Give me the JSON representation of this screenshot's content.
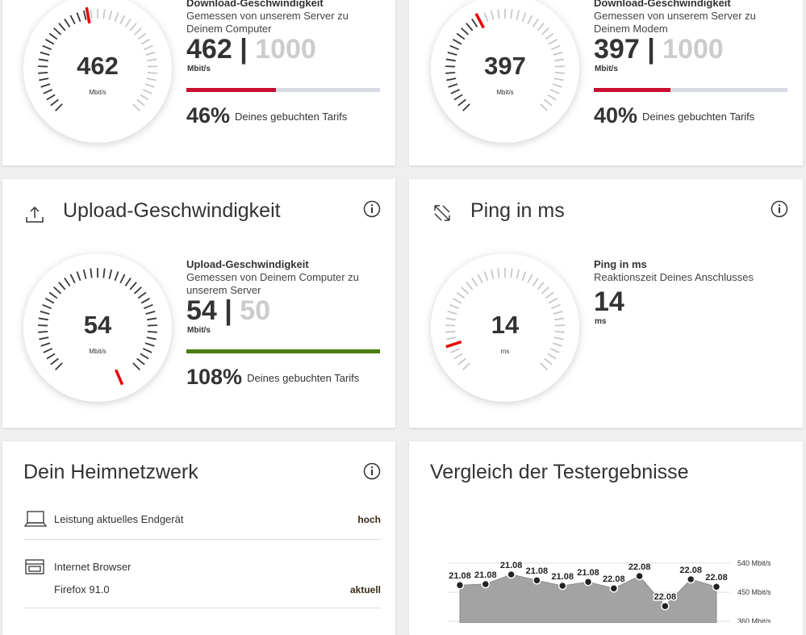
{
  "speed_cards": [
    {
      "title": "Download-Geschwindigkeit",
      "subtitle": "Gemessen von unserem Server zu Deinem Computer",
      "value": 462,
      "separator": "|",
      "max": 1000,
      "unit": "Mbit/s",
      "percent_label": "46%",
      "percent_text": "Deines gebuchten Tarifs"
    },
    {
      "title": "Download-Geschwindigkeit",
      "subtitle": "Gemessen von unserem Server zu Deinem Modem",
      "value": 397,
      "separator": "|",
      "max": 1000,
      "unit": "Mbit/s",
      "percent_label": "40%",
      "percent_text": "Deines gebuchten Tarifs"
    },
    {
      "heading": "Upload-Geschwindigkeit",
      "title": "Upload-Geschwindigkeit",
      "subtitle": "Gemessen von Deinem Computer zu unserem Server",
      "value": 54,
      "separator": "|",
      "max": 50,
      "unit": "Mbit/s",
      "percent_label": "108%",
      "percent_text": "Deines gebuchten Tarifs"
    }
  ],
  "ping_card": {
    "heading": "Ping in ms",
    "title": "Ping in ms",
    "subtitle": "Reaktionszeit Deines Anschlusses",
    "value": 14,
    "unit": "ms"
  },
  "home_network": {
    "heading": "Dein Heimnetzwerk",
    "rows": [
      {
        "label": "Leistung aktuelles Endgerät",
        "status": "hoch"
      },
      {
        "label": "Internet Browser",
        "detail": "Firefox 91.0",
        "status": "aktuell"
      }
    ]
  },
  "chart_data": {
    "type": "area",
    "title": "Vergleich der Testergebnisse",
    "categories": [
      "21.08",
      "21.08",
      "21.08",
      "21.08",
      "21.08",
      "21.08",
      "22.08",
      "22.08",
      "22.08",
      "22.08",
      "22.08"
    ],
    "values": [
      472,
      475,
      505,
      487,
      470,
      482,
      462,
      500,
      407,
      490,
      467
    ],
    "color": "#a3a3a3",
    "ylim": [
      360,
      560
    ],
    "yticks": [
      {
        "value": 540,
        "label": "540 Mbit/s"
      },
      {
        "value": 450,
        "label": "450 Mbit/s"
      },
      {
        "value": 360,
        "label": "360 Mbit/s"
      }
    ],
    "grid": true
  }
}
